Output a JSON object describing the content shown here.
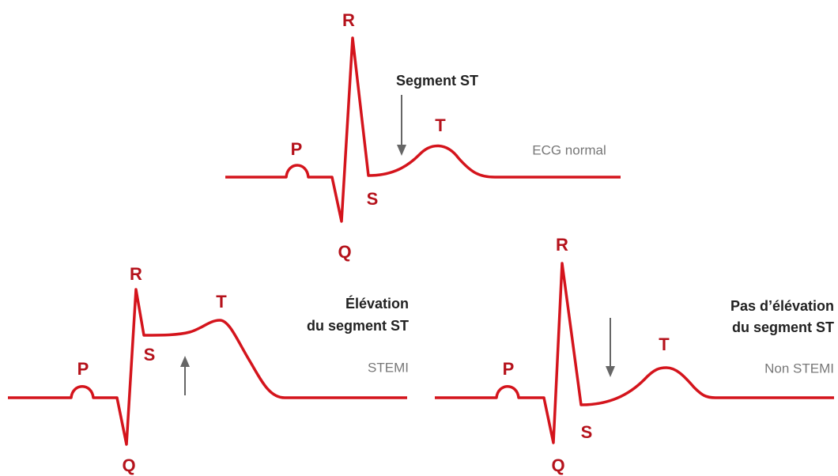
{
  "diagrams": [
    {
      "heading": [
        "Segment ST"
      ],
      "caption": "ECG normal",
      "waves": {
        "P": "P",
        "Q": "Q",
        "R": "R",
        "S": "S",
        "T": "T"
      }
    },
    {
      "heading": [
        "Élévation",
        "du segment ST"
      ],
      "caption": "STEMI",
      "waves": {
        "P": "P",
        "Q": "Q",
        "R": "R",
        "S": "S",
        "T": "T"
      }
    },
    {
      "heading": [
        "Pas d’élévation",
        "du segment ST"
      ],
      "caption": "Non STEMI",
      "waves": {
        "P": "P",
        "Q": "Q",
        "R": "R",
        "S": "S",
        "T": "T"
      }
    }
  ]
}
